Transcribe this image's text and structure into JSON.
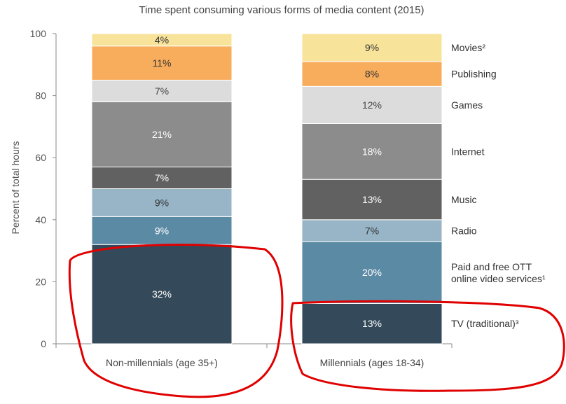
{
  "chart_data": {
    "type": "bar",
    "stacked": true,
    "title": "Time spent consuming various forms of media content (2015)",
    "ylabel": "Percent of total hours",
    "xlabel": "",
    "ylim": [
      0,
      100
    ],
    "yticks": [
      0,
      20,
      40,
      60,
      80,
      100
    ],
    "grid": false,
    "legend_placement": "right, labels beside stacked segments",
    "categories": [
      "Non-millennials (age 35+)",
      "Millennials (ages 18-34)"
    ],
    "series": [
      {
        "name": "TV (traditional)³",
        "color": "#344a5b",
        "label_color": "#ffffff",
        "values": [
          32,
          13
        ],
        "labels": [
          "32%",
          "13%"
        ]
      },
      {
        "name": "Paid and free OTT online video services¹",
        "color": "#5b8aa4",
        "label_color": "#ffffff",
        "values": [
          9,
          20
        ],
        "labels": [
          "9%",
          "20%"
        ]
      },
      {
        "name": "Radio",
        "color": "#97b5c7",
        "label_color": "#333333",
        "values": [
          9,
          7
        ],
        "labels": [
          "9%",
          "7%"
        ]
      },
      {
        "name": "Music",
        "color": "#616161",
        "label_color": "#ffffff",
        "values": [
          7,
          13
        ],
        "labels": [
          "7%",
          "13%"
        ]
      },
      {
        "name": "Internet",
        "color": "#8c8c8c",
        "label_color": "#ffffff",
        "values": [
          21,
          18
        ],
        "labels": [
          "21%",
          "18%"
        ]
      },
      {
        "name": "Games",
        "color": "#dcdcdc",
        "label_color": "#444444",
        "values": [
          7,
          12
        ],
        "labels": [
          "7%",
          "12%"
        ]
      },
      {
        "name": "Publishing",
        "color": "#f7ad5b",
        "label_color": "#333333",
        "values": [
          11,
          8
        ],
        "labels": [
          "11%",
          "8%"
        ]
      },
      {
        "name": "Movies²",
        "color": "#f8e39b",
        "label_color": "#333333",
        "values": [
          4,
          9
        ],
        "labels": [
          "4%",
          "9%"
        ]
      }
    ],
    "annotations": [
      {
        "type": "hand-drawn circle",
        "color": "#e00000",
        "target": "TV (traditional) segment, Non-millennials (age 35+)"
      },
      {
        "type": "hand-drawn circle",
        "color": "#e00000",
        "target": "TV (traditional) segment, Millennials (ages 18-34)"
      }
    ]
  }
}
